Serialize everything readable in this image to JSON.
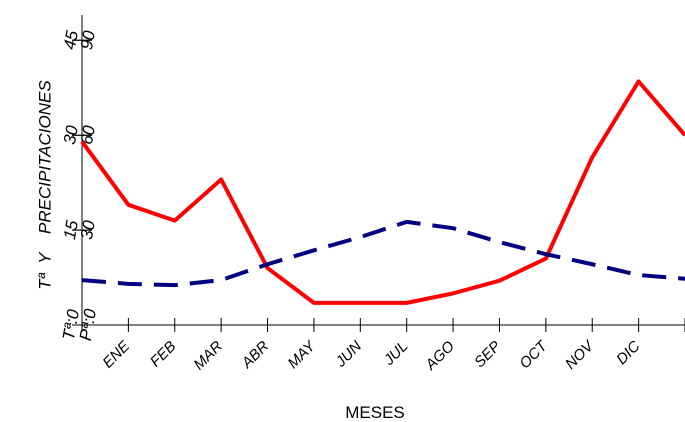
{
  "chart_data": {
    "type": "line",
    "y_label": "Tª  Y    PRECIPITACIONES",
    "x_label": "MESES",
    "categories": [
      null,
      "ENE",
      "FEB",
      "MAR",
      "ABR",
      "MAY",
      "JUN",
      "JUL",
      "AGO",
      "SEP",
      "OCT",
      "NOV",
      "DIC",
      null
    ],
    "ylim": [
      0,
      49
    ],
    "yticks": [
      {
        "value": 0,
        "label": "Tª:0"
      },
      15,
      30,
      45
    ],
    "y2lim": [
      0,
      98
    ],
    "y2ticks": [
      {
        "value": 0,
        "label": "Pª:0"
      },
      30,
      60,
      90
    ],
    "series": [
      {
        "color": "#ff0000",
        "axis": "y2",
        "line_style": "solid",
        "values": [
          58,
          38,
          33,
          46,
          18,
          7,
          7,
          7,
          10,
          14,
          21,
          53,
          77,
          60
        ]
      },
      {
        "color": "#000080",
        "line_style": "dashed",
        "values": [
          7.1,
          6.5,
          6.3,
          7.1,
          9.6,
          11.8,
          13.9,
          16.3,
          15.3,
          13.1,
          11.2,
          9.6,
          7.9,
          7.3
        ]
      }
    ]
  }
}
